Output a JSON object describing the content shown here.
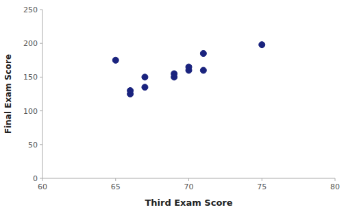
{
  "chart_data": {
    "type": "scatter",
    "x": [
      65,
      66,
      66,
      67,
      67,
      69,
      69,
      70,
      70,
      71,
      71,
      75
    ],
    "values": [
      175,
      125,
      130,
      150,
      135,
      155,
      150,
      160,
      165,
      185,
      160,
      198
    ],
    "xlabel": "Third Exam Score",
    "ylabel": "Final Exam Score",
    "xlim": [
      60,
      80
    ],
    "ylim": [
      0,
      250
    ],
    "xticks": [
      60,
      65,
      70,
      75,
      80
    ],
    "yticks": [
      0,
      50,
      100,
      150,
      200,
      250
    ],
    "color": "#1a237e",
    "grid": false
  }
}
